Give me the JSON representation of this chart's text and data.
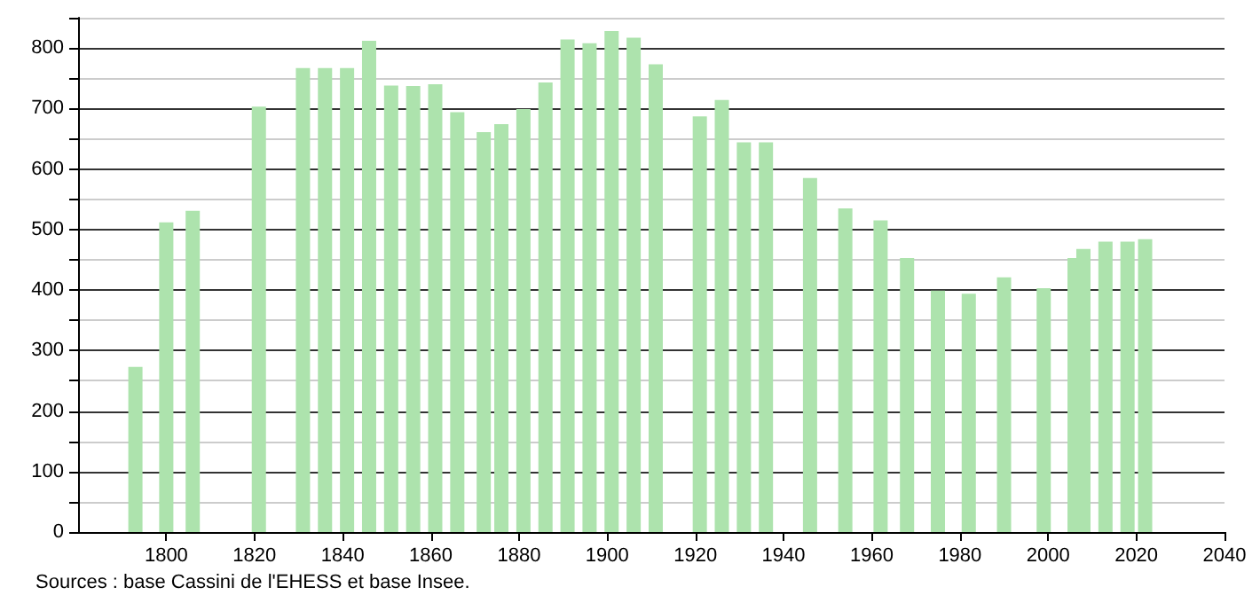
{
  "chart_data": {
    "type": "bar",
    "x": [
      1793,
      1800,
      1806,
      1821,
      1831,
      1836,
      1841,
      1846,
      1851,
      1856,
      1861,
      1866,
      1872,
      1876,
      1881,
      1886,
      1891,
      1896,
      1901,
      1906,
      1911,
      1921,
      1926,
      1931,
      1936,
      1946,
      1954,
      1962,
      1968,
      1975,
      1982,
      1990,
      1999,
      2006,
      2008,
      2013,
      2018,
      2022
    ],
    "values": [
      273,
      512,
      531,
      703,
      767,
      767,
      767,
      812,
      738,
      737,
      740,
      694,
      661,
      674,
      699,
      743,
      814,
      808,
      828,
      817,
      773,
      687,
      714,
      644,
      644,
      585,
      535,
      515,
      453,
      399,
      394,
      421,
      403,
      453,
      468,
      480,
      480,
      484
    ],
    "color": "#ade3ad",
    "xlim": [
      1780,
      2040
    ],
    "xticks": [
      1800,
      1820,
      1840,
      1860,
      1880,
      1900,
      1920,
      1940,
      1960,
      1980,
      2000,
      2020,
      2040
    ],
    "ylim": [
      0,
      850
    ],
    "yticks": [
      0,
      {
        "value": 50,
        "label": null
      },
      100,
      {
        "value": 150,
        "label": null
      },
      200,
      {
        "value": 250,
        "label": null
      },
      300,
      {
        "value": 350,
        "label": null
      },
      400,
      {
        "value": 450,
        "label": null
      },
      500,
      {
        "value": 550,
        "label": null
      },
      600,
      {
        "value": 650,
        "label": null
      },
      700,
      {
        "value": 750,
        "label": null
      },
      800,
      {
        "value": 850,
        "label": null
      }
    ],
    "grid": "y",
    "annotations": [
      "Sources : base Cassini de l'EHESS et base Insee."
    ]
  }
}
